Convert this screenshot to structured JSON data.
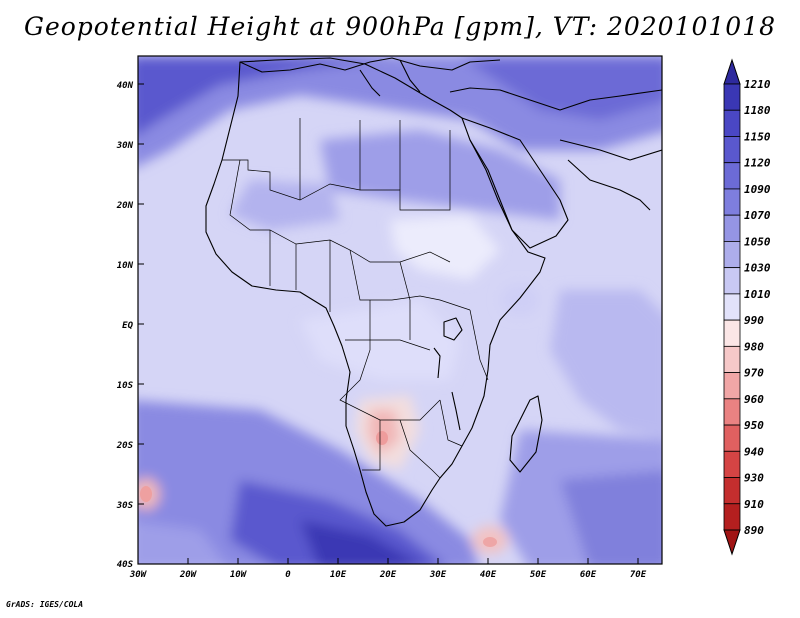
{
  "title": "Geopotential Height at 900hPa [gpm], VT: 2020101018",
  "footer": "GrADS: IGES/COLA",
  "map": {
    "lat_labels": [
      "40N",
      "30N",
      "20N",
      "10N",
      "EQ",
      "10S",
      "20S",
      "30S",
      "40S"
    ],
    "lon_labels": [
      "30W",
      "20W",
      "10W",
      "0",
      "10E",
      "20E",
      "30E",
      "40E",
      "50E",
      "60E",
      "70E"
    ]
  },
  "colorbar": {
    "levels": [
      "1210",
      "1180",
      "1150",
      "1120",
      "1090",
      "1070",
      "1050",
      "1030",
      "1010",
      "990",
      "980",
      "970",
      "960",
      "950",
      "940",
      "930",
      "910",
      "890"
    ],
    "colors": [
      "#2e2a9e",
      "#3a37b4",
      "#4a47c4",
      "#5a58ce",
      "#6c6bd6",
      "#7e7ede",
      "#9595e4",
      "#adadeb",
      "#c8c8f3",
      "#e2e2fa",
      "#fbe6e6",
      "#f6c8c8",
      "#f1a6a6",
      "#ea8282",
      "#e06060",
      "#d54444",
      "#c42e2e",
      "#b41f1f",
      "#a01414"
    ]
  }
}
